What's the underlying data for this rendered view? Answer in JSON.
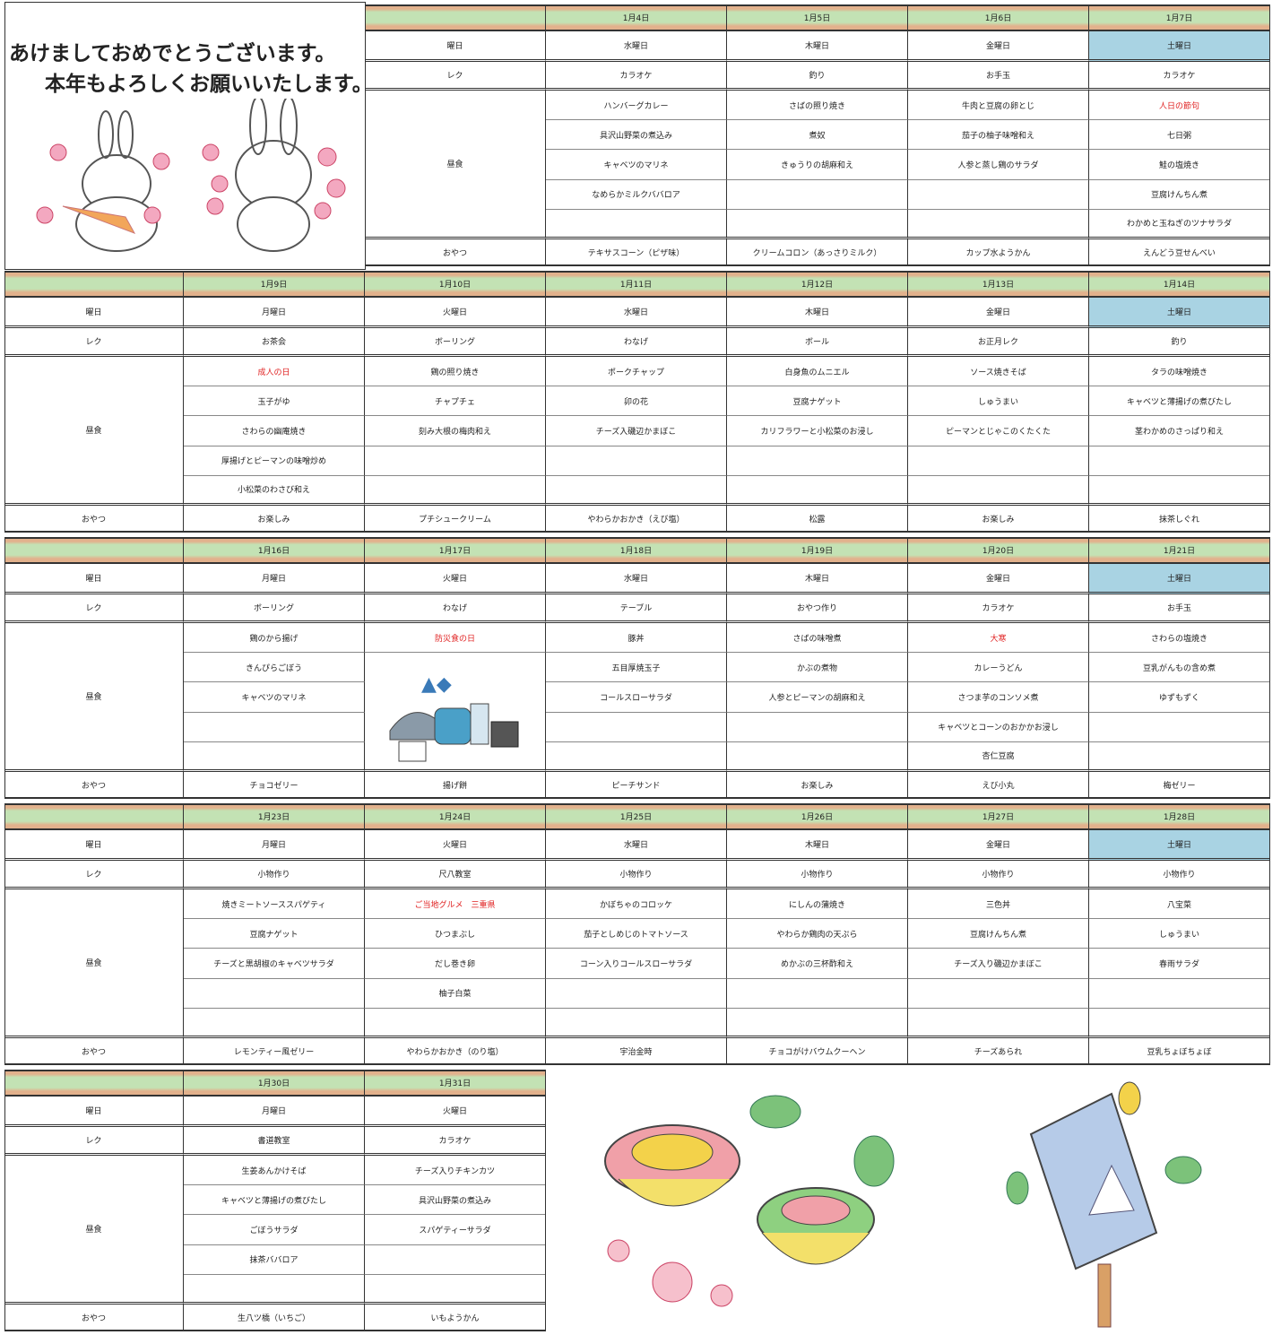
{
  "greeting": [
    "あけましておめでとうございます。",
    "本年もよろしくお願いいたします。"
  ],
  "labels": {
    "weekday": "曜日",
    "rec": "レク",
    "lunch": "昼食",
    "snack": "おやつ"
  },
  "weeks": [
    {
      "days": [
        {
          "date": "1月4日",
          "weekday": "水曜日",
          "rec": "カラオケ",
          "lunch": [
            "ハンバーグカレー",
            "具沢山野菜の煮込み",
            "キャベツのマリネ",
            "なめらかミルクババロア"
          ],
          "snack": "テキサスコーン（ピザ味）"
        },
        {
          "date": "1月5日",
          "weekday": "木曜日",
          "rec": "釣り",
          "lunch": [
            "さばの照り焼き",
            "煮奴",
            "きゅうりの胡麻和え"
          ],
          "snack": "クリームコロン（あっさりミルク）"
        },
        {
          "date": "1月6日",
          "weekday": "金曜日",
          "rec": "お手玉",
          "lunch": [
            "牛肉と豆腐の卵とじ",
            "茄子の柚子味噌和え",
            "人参と蒸し鶏のサラダ"
          ],
          "snack": "カップ水ようかん"
        },
        {
          "date": "1月7日",
          "weekday": "土曜日",
          "rec": "カラオケ",
          "event": "人日の節句",
          "lunch": [
            "七日粥",
            "鮭の塩焼き",
            "豆腐けんちん煮",
            "わかめと玉ねぎのツナサラダ"
          ],
          "snack": "えんどう豆せんべい"
        }
      ]
    },
    {
      "days": [
        {
          "date": "1月9日",
          "weekday": "月曜日",
          "rec": "お茶会",
          "event": "成人の日",
          "lunch": [
            "玉子がゆ",
            "さわらの幽庵焼き",
            "厚揚げとピーマンの味噌炒め",
            "小松菜のわさび和え"
          ],
          "snack": "お楽しみ"
        },
        {
          "date": "1月10日",
          "weekday": "火曜日",
          "rec": "ボーリング",
          "lunch": [
            "鶏の照り焼き",
            "チャプチェ",
            "刻み大根の梅肉和え"
          ],
          "snack": "プチシュークリーム"
        },
        {
          "date": "1月11日",
          "weekday": "水曜日",
          "rec": "わなげ",
          "lunch": [
            "ポークチャップ",
            "卯の花",
            "チーズ入磯辺かまぼこ"
          ],
          "snack": "やわらかおかき（えび塩）"
        },
        {
          "date": "1月12日",
          "weekday": "木曜日",
          "rec": "ボール",
          "lunch": [
            "白身魚のムニエル",
            "豆腐ナゲット",
            "カリフラワーと小松菜のお浸し"
          ],
          "snack": "松露"
        },
        {
          "date": "1月13日",
          "weekday": "金曜日",
          "rec": "お正月レク",
          "lunch": [
            "ソース焼きそば",
            "しゅうまい",
            "ピーマンとじゃこのくたくた"
          ],
          "snack": "お楽しみ"
        },
        {
          "date": "1月14日",
          "weekday": "土曜日",
          "rec": "釣り",
          "lunch": [
            "タラの味噌焼き",
            "キャベツと薄揚げの煮びたし",
            "茎わかめのさっぱり和え"
          ],
          "snack": "抹茶しぐれ"
        }
      ]
    },
    {
      "days": [
        {
          "date": "1月16日",
          "weekday": "月曜日",
          "rec": "ボーリング",
          "lunch": [
            "鶏のから揚げ",
            "きんぴらごぼう",
            "キャベツのマリネ"
          ],
          "snack": "チョコゼリー"
        },
        {
          "date": "1月17日",
          "weekday": "火曜日",
          "rec": "わなげ",
          "event": "防災食の日",
          "lunch": [],
          "snack": "揚げ餅"
        },
        {
          "date": "1月18日",
          "weekday": "水曜日",
          "rec": "テーブル",
          "lunch": [
            "豚丼",
            "五目厚焼玉子",
            "コールスローサラダ"
          ],
          "snack": "ピーチサンド"
        },
        {
          "date": "1月19日",
          "weekday": "木曜日",
          "rec": "おやつ作り",
          "lunch": [
            "さばの味噌煮",
            "かぶの煮物",
            "人参とピーマンの胡麻和え"
          ],
          "snack": "お楽しみ"
        },
        {
          "date": "1月20日",
          "weekday": "金曜日",
          "rec": "カラオケ",
          "event": "大寒",
          "lunch": [
            "カレーうどん",
            "さつま芋のコンソメ煮",
            "キャベツとコーンのおかかお浸し",
            "杏仁豆腐"
          ],
          "snack": "えび小丸"
        },
        {
          "date": "1月21日",
          "weekday": "土曜日",
          "rec": "お手玉",
          "lunch": [
            "さわらの塩焼き",
            "豆乳がんもの含め煮",
            "ゆずもずく"
          ],
          "snack": "梅ゼリー"
        }
      ]
    },
    {
      "days": [
        {
          "date": "1月23日",
          "weekday": "月曜日",
          "rec": "小物作り",
          "lunch": [
            "焼きミートソーススパゲティ",
            "豆腐ナゲット",
            "チーズと黒胡椒のキャベツサラダ"
          ],
          "snack": "レモンティー風ゼリー"
        },
        {
          "date": "1月24日",
          "weekday": "火曜日",
          "rec": "尺八教室",
          "event": "ご当地グルメ　三重県",
          "lunch": [
            "ひつまぶし",
            "だし巻き卵",
            "柚子白菜"
          ],
          "snack": "やわらかおかき（のり塩）"
        },
        {
          "date": "1月25日",
          "weekday": "水曜日",
          "rec": "小物作り",
          "lunch": [
            "かぼちゃのコロッケ",
            "茄子としめじのトマトソース",
            "コーン入りコールスローサラダ"
          ],
          "snack": "宇治金時"
        },
        {
          "date": "1月26日",
          "weekday": "木曜日",
          "rec": "小物作り",
          "lunch": [
            "にしんの蒲焼き",
            "やわらか鶏肉の天ぷら",
            "めかぶの三杯酢和え"
          ],
          "snack": "チョコがけバウムクーヘン"
        },
        {
          "date": "1月27日",
          "weekday": "金曜日",
          "rec": "小物作り",
          "lunch": [
            "三色丼",
            "豆腐けんちん煮",
            "チーズ入り磯辺かまぼこ"
          ],
          "snack": "チーズあられ"
        },
        {
          "date": "1月28日",
          "weekday": "土曜日",
          "rec": "小物作り",
          "lunch": [
            "八宝菜",
            "しゅうまい",
            "春雨サラダ"
          ],
          "snack": "豆乳ちょぼちょぼ"
        }
      ]
    },
    {
      "days": [
        {
          "date": "1月30日",
          "weekday": "月曜日",
          "rec": "書道教室",
          "lunch": [
            "生姜あんかけそば",
            "キャベツと薄揚げの煮びたし",
            "ごぼうサラダ",
            "抹茶ババロア"
          ],
          "snack": "生八ツ橋（いちご）"
        },
        {
          "date": "1月31日",
          "weekday": "火曜日",
          "rec": "カラオケ",
          "lunch": [
            "チーズ入りチキンカツ",
            "具沢山野菜の煮込み",
            "スパゲティーサラダ"
          ],
          "snack": "いもようかん"
        }
      ]
    }
  ]
}
